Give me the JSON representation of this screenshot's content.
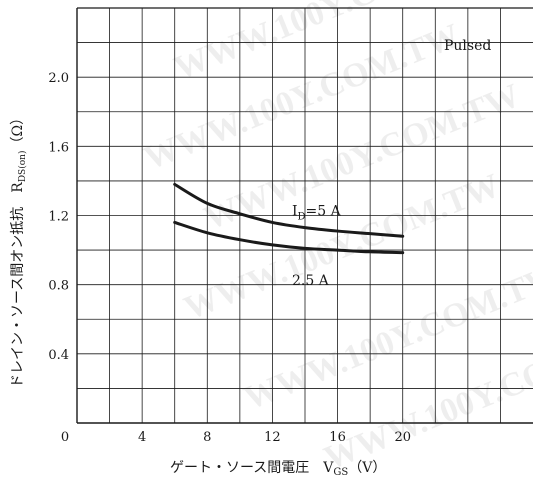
{
  "chart_data": {
    "type": "line",
    "title": "",
    "xlabel": "ゲート・ソース間電圧　V",
    "xlabel_sub": "GS",
    "xlabel_unit": "（V）",
    "ylabel": "ドレイン・ソース間オン抵抗　R",
    "ylabel_sub": "DS(on)",
    "ylabel_unit": "（Ω）",
    "xlim": [
      0,
      28
    ],
    "ylim": [
      0,
      2.4
    ],
    "x_ticks": [
      0,
      4,
      8,
      12,
      16,
      20
    ],
    "x_tick_labels": [
      "0",
      "4",
      "8",
      "12",
      "16",
      "20"
    ],
    "y_ticks": [
      0.4,
      0.8,
      1.2,
      1.6,
      2.0
    ],
    "y_tick_labels": [
      "0.4",
      "0.8",
      "1.2",
      "1.6",
      "2.0"
    ],
    "grid": true,
    "annotation": "Pulsed",
    "series": [
      {
        "name": "I_D=5 A",
        "label_main": "I",
        "label_sub": "D",
        "label_rest": "=5 A",
        "x": [
          6,
          8,
          10,
          12,
          14,
          16,
          18,
          20
        ],
        "y": [
          1.38,
          1.27,
          1.21,
          1.16,
          1.13,
          1.11,
          1.095,
          1.08
        ]
      },
      {
        "name": "2.5 A",
        "label_main": "2.5 A",
        "label_sub": "",
        "label_rest": "",
        "x": [
          6,
          8,
          10,
          12,
          14,
          16,
          18,
          20
        ],
        "y": [
          1.16,
          1.1,
          1.06,
          1.03,
          1.01,
          1.0,
          0.99,
          0.985
        ]
      }
    ]
  },
  "watermark": "WWW.100Y.COM.TW",
  "colors": {
    "line": "#1a1a1a",
    "grid": "#1a1a1a",
    "text": "#1a1a1a"
  }
}
